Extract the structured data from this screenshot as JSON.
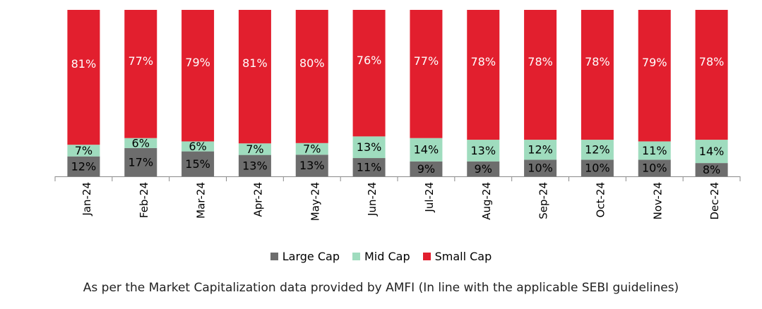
{
  "chart_data": {
    "type": "bar",
    "stacked": true,
    "normalized_percent": true,
    "categories": [
      "Jan-24",
      "Feb-24",
      "Mar-24",
      "Apr-24",
      "May-24",
      "Jun-24",
      "Jul-24",
      "Aug-24",
      "Sep-24",
      "Oct-24",
      "Nov-24",
      "Dec-24"
    ],
    "series": [
      {
        "name": "Large Cap",
        "color": "#6d6d6d",
        "label_color": "#000000",
        "values": [
          12,
          17,
          15,
          13,
          13,
          11,
          9,
          9,
          10,
          10,
          10,
          8
        ]
      },
      {
        "name": "Mid Cap",
        "color": "#9fdcbe",
        "label_color": "#000000",
        "values": [
          7,
          6,
          6,
          7,
          7,
          13,
          14,
          13,
          12,
          12,
          11,
          14
        ]
      },
      {
        "name": "Small Cap",
        "color": "#e21f2e",
        "label_color": "#ffffff",
        "values": [
          81,
          77,
          79,
          81,
          80,
          76,
          77,
          78,
          78,
          78,
          79,
          78
        ]
      }
    ],
    "value_suffix": "%",
    "legend_position": "bottom",
    "grid": false
  },
  "footnote": "As per the Market Capitalization data provided by AMFI (In line with the applicable SEBI guidelines)"
}
